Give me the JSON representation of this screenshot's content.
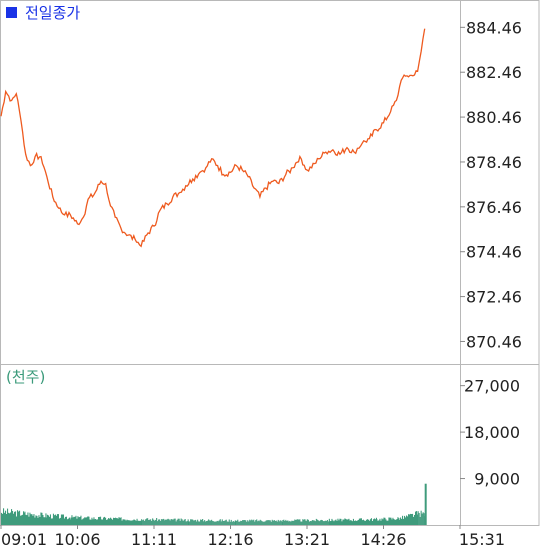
{
  "legend": {
    "label": "전일종가",
    "color": "#1a33e6"
  },
  "volume_unit": "(천주)",
  "chart_data": [
    {
      "type": "line",
      "name": "price",
      "color": "#ee5a1f",
      "ylim": [
        869.5,
        885.5
      ],
      "y_ticks": [
        "884.46",
        "882.46",
        "880.46",
        "878.46",
        "876.46",
        "874.46",
        "872.46",
        "870.46"
      ],
      "x_ticks": [
        "09:01",
        "10:06",
        "11:11",
        "12:16",
        "13:21",
        "14:26",
        "15:31"
      ],
      "points": [
        [
          "09:01",
          880.5
        ],
        [
          "09:05",
          881.6
        ],
        [
          "09:10",
          881.2
        ],
        [
          "09:14",
          881.5
        ],
        [
          "09:18",
          880.3
        ],
        [
          "09:22",
          878.8
        ],
        [
          "09:26",
          878.3
        ],
        [
          "09:30",
          878.7
        ],
        [
          "09:35",
          878.7
        ],
        [
          "09:40",
          877.8
        ],
        [
          "09:45",
          876.9
        ],
        [
          "09:50",
          876.4
        ],
        [
          "09:55",
          876.1
        ],
        [
          "10:00",
          876.1
        ],
        [
          "10:06",
          875.7
        ],
        [
          "10:11",
          876.0
        ],
        [
          "10:15",
          876.8
        ],
        [
          "10:20",
          877.0
        ],
        [
          "10:26",
          877.6
        ],
        [
          "10:30",
          877.5
        ],
        [
          "10:34",
          876.5
        ],
        [
          "10:38",
          876.0
        ],
        [
          "10:43",
          875.5
        ],
        [
          "10:49",
          875.2
        ],
        [
          "10:55",
          875.0
        ],
        [
          "11:00",
          874.7
        ],
        [
          "11:06",
          875.3
        ],
        [
          "11:11",
          875.6
        ],
        [
          "11:16",
          876.3
        ],
        [
          "11:22",
          876.6
        ],
        [
          "11:27",
          876.9
        ],
        [
          "11:33",
          877.1
        ],
        [
          "11:38",
          877.4
        ],
        [
          "11:44",
          877.7
        ],
        [
          "11:50",
          878.0
        ],
        [
          "11:55",
          878.2
        ],
        [
          "12:00",
          878.6
        ],
        [
          "12:05",
          878.3
        ],
        [
          "12:10",
          877.9
        ],
        [
          "12:16",
          878.0
        ],
        [
          "12:21",
          878.3
        ],
        [
          "12:26",
          878.1
        ],
        [
          "12:31",
          877.8
        ],
        [
          "12:36",
          877.3
        ],
        [
          "12:41",
          876.9
        ],
        [
          "12:46",
          877.3
        ],
        [
          "12:52",
          877.6
        ],
        [
          "12:57",
          877.5
        ],
        [
          "13:03",
          877.9
        ],
        [
          "13:09",
          878.2
        ],
        [
          "13:15",
          878.7
        ],
        [
          "13:21",
          878.1
        ],
        [
          "13:25",
          878.2
        ],
        [
          "13:31",
          878.6
        ],
        [
          "13:37",
          878.9
        ],
        [
          "13:43",
          879.0
        ],
        [
          "13:49",
          878.8
        ],
        [
          "13:55",
          879.1
        ],
        [
          "14:01",
          878.9
        ],
        [
          "14:08",
          879.3
        ],
        [
          "14:14",
          879.5
        ],
        [
          "14:20",
          879.9
        ],
        [
          "14:26",
          880.2
        ],
        [
          "14:32",
          880.7
        ],
        [
          "14:37",
          881.2
        ],
        [
          "14:41",
          882.1
        ],
        [
          "14:46",
          882.3
        ],
        [
          "14:51",
          882.3
        ],
        [
          "14:55",
          882.5
        ],
        [
          "14:58",
          883.4
        ],
        [
          "15:01",
          884.4
        ]
      ]
    },
    {
      "type": "bar",
      "name": "volume",
      "color": "#3f9b7c",
      "ylim": [
        0,
        31000
      ],
      "y_ticks": [
        "27,000",
        "18,000",
        "9,000"
      ],
      "x_ticks": [
        "09:01",
        "10:06",
        "11:11",
        "12:16",
        "13:21",
        "14:26",
        "15:31"
      ],
      "points": [
        [
          "09:01",
          2600
        ],
        [
          "09:20",
          2200
        ],
        [
          "09:40",
          1800
        ],
        [
          "10:00",
          1500
        ],
        [
          "10:20",
          1300
        ],
        [
          "10:40",
          1200
        ],
        [
          "11:00",
          1100
        ],
        [
          "11:20",
          1000
        ],
        [
          "11:40",
          950
        ],
        [
          "12:00",
          900
        ],
        [
          "12:20",
          850
        ],
        [
          "12:40",
          850
        ],
        [
          "13:00",
          850
        ],
        [
          "13:20",
          900
        ],
        [
          "13:40",
          950
        ],
        [
          "14:00",
          1000
        ],
        [
          "14:20",
          1100
        ],
        [
          "14:40",
          1300
        ],
        [
          "14:55",
          2200
        ],
        [
          "15:01",
          8000
        ]
      ]
    }
  ]
}
